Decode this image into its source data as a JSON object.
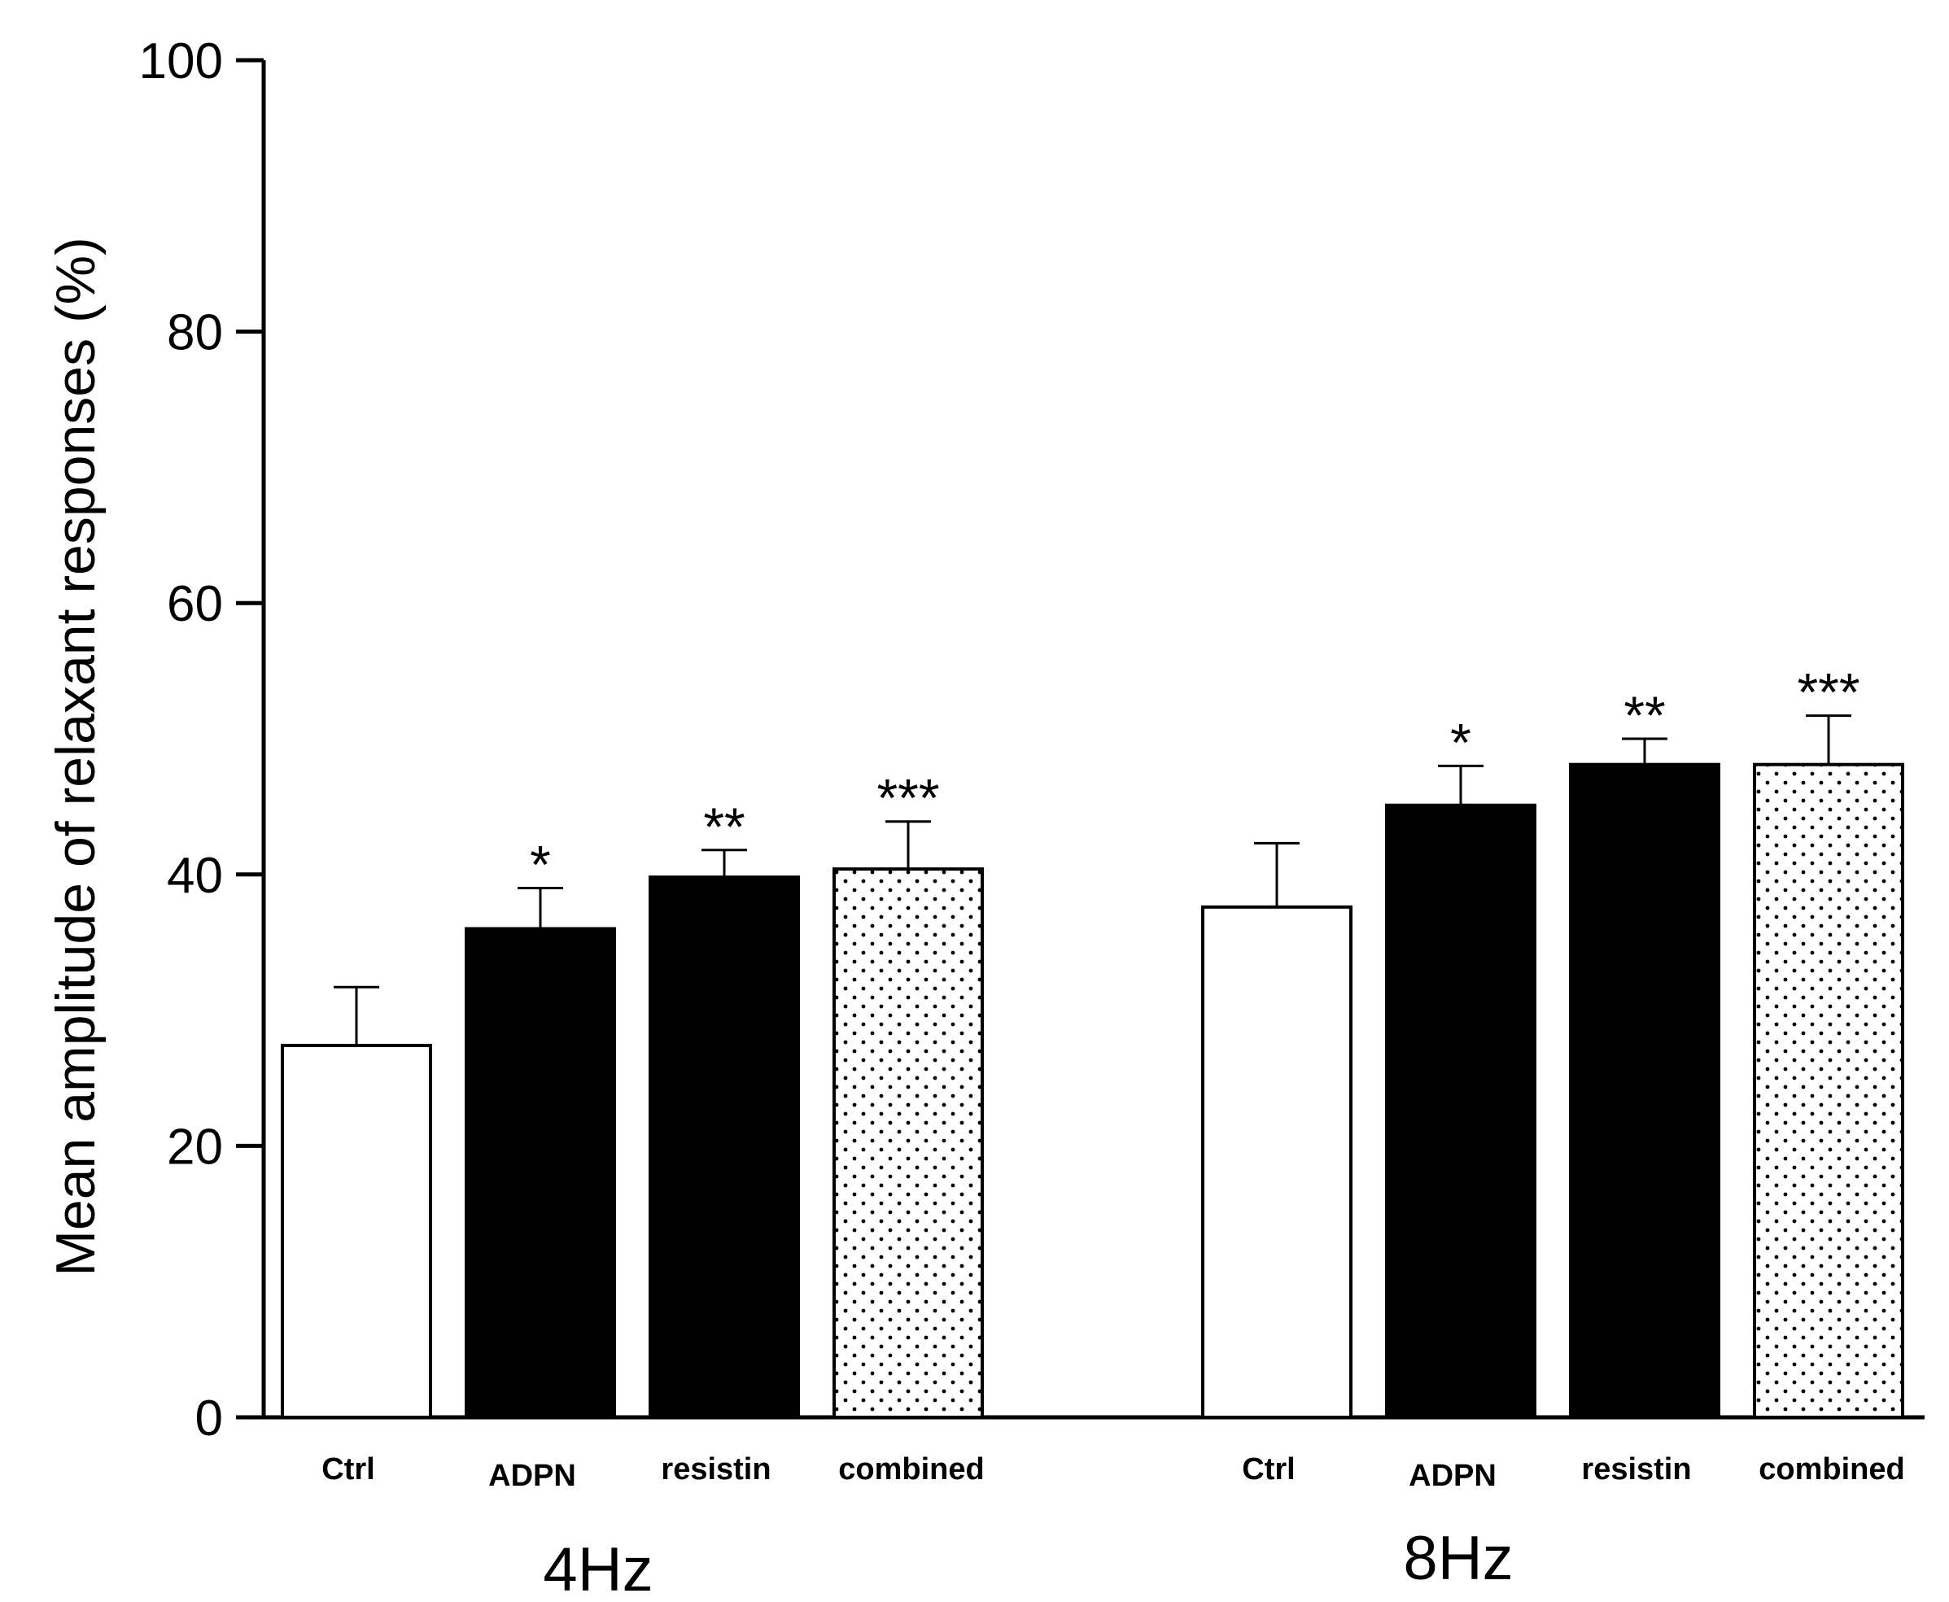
{
  "chart_data": {
    "type": "bar",
    "title": "",
    "xlabel": "",
    "ylabel": "Mean amplitude of relaxant responses (%)",
    "ylim": [
      0,
      100
    ],
    "yticks": [
      "0",
      "20",
      "40",
      "60",
      "80",
      "100"
    ],
    "groups": [
      {
        "label": "4Hz",
        "bars": [
          {
            "category": "Ctrl",
            "value": 27.4,
            "error": 4.3,
            "significance": "",
            "fill": "white"
          },
          {
            "category": "ADPN",
            "value": 36.0,
            "error": 3.0,
            "significance": "*",
            "fill": "black"
          },
          {
            "category": "resistin",
            "value": 39.8,
            "error": 2.0,
            "significance": "**",
            "fill": "black"
          },
          {
            "category": "combined",
            "value": 40.4,
            "error": 3.5,
            "significance": "***",
            "fill": "dotted"
          }
        ]
      },
      {
        "label": "8Hz",
        "bars": [
          {
            "category": "Ctrl",
            "value": 37.6,
            "error": 4.7,
            "significance": "",
            "fill": "white"
          },
          {
            "category": "ADPN",
            "value": 45.1,
            "error": 2.9,
            "significance": "*",
            "fill": "black"
          },
          {
            "category": "resistin",
            "value": 48.1,
            "error": 1.9,
            "significance": "**",
            "fill": "black"
          },
          {
            "category": "combined",
            "value": 48.1,
            "error": 3.6,
            "significance": "***",
            "fill": "dotted"
          }
        ]
      }
    ]
  },
  "colors": {
    "axis": "#000000",
    "black_bar": "#000000",
    "white_bar": "#ffffff",
    "dot": "#000000"
  }
}
